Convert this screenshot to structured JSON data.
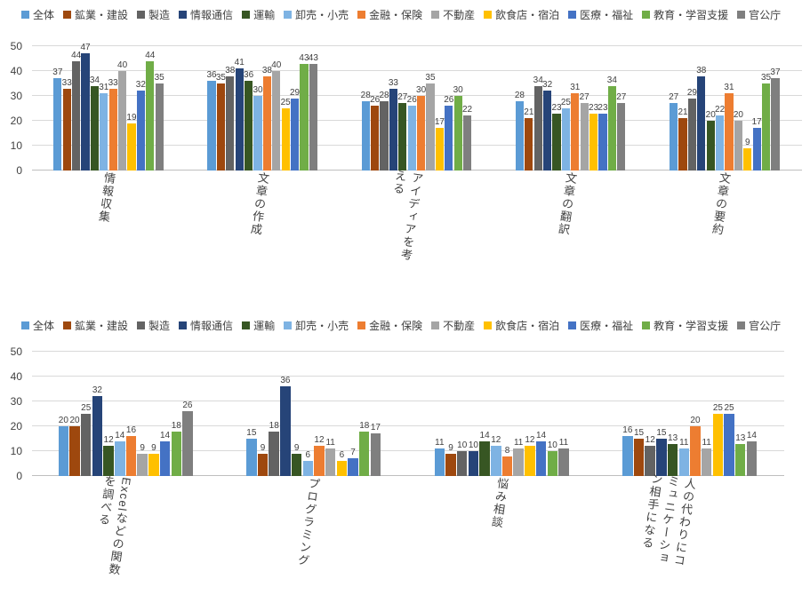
{
  "page": {
    "background": "#ffffff"
  },
  "chart_data": [
    {
      "type": "bar",
      "title": "",
      "xlabel": "",
      "ylabel": "",
      "legend_position": "top",
      "grid": true,
      "ylim": [
        0,
        50
      ],
      "yticks": [
        0,
        10,
        20,
        30,
        40,
        50
      ],
      "categories": [
        "情報収集",
        "文章の作成",
        "アイディアを考える",
        "文章の翻訳",
        "文章の要約"
      ],
      "series": [
        {
          "name": "全体",
          "color": "#5B9BD5",
          "values": [
            37,
            36,
            28,
            28,
            27
          ]
        },
        {
          "name": "鉱業・建設",
          "color": "#9E480E",
          "values": [
            33,
            35,
            26,
            21,
            21
          ]
        },
        {
          "name": "製造",
          "color": "#636363",
          "values": [
            44,
            38,
            28,
            34,
            29
          ]
        },
        {
          "name": "情報通信",
          "color": "#264478",
          "values": [
            47,
            41,
            33,
            32,
            38
          ]
        },
        {
          "name": "運輸",
          "color": "#375623",
          "values": [
            34,
            36,
            27,
            23,
            20
          ]
        },
        {
          "name": "卸売・小売",
          "color": "#7EB3E3",
          "values": [
            31,
            30,
            26,
            25,
            22
          ]
        },
        {
          "name": "金融・保険",
          "color": "#ED7D31",
          "values": [
            33,
            38,
            30,
            31,
            31
          ]
        },
        {
          "name": "不動産",
          "color": "#A5A5A5",
          "values": [
            40,
            40,
            35,
            27,
            20
          ]
        },
        {
          "name": "飲食店・宿泊",
          "color": "#FFC000",
          "values": [
            19,
            25,
            17,
            23,
            9
          ]
        },
        {
          "name": "医療・福祉",
          "color": "#4472C4",
          "values": [
            32,
            29,
            26,
            23,
            17
          ]
        },
        {
          "name": "教育・学習支援",
          "color": "#70AD47",
          "values": [
            44,
            43,
            30,
            34,
            35
          ]
        },
        {
          "name": "官公庁",
          "color": "#7F7F7F",
          "values": [
            35,
            43,
            22,
            27,
            37
          ]
        }
      ]
    },
    {
      "type": "bar",
      "title": "",
      "xlabel": "",
      "ylabel": "",
      "legend_position": "top",
      "grid": true,
      "ylim": [
        0,
        50
      ],
      "yticks": [
        0,
        10,
        20,
        30,
        40,
        50
      ],
      "categories": [
        "Excelなどの関数を調べる",
        "プログラミング",
        "悩み相談",
        "人の代わりにコミュニケーション相手になる"
      ],
      "series": [
        {
          "name": "全体",
          "color": "#5B9BD5",
          "values": [
            20,
            15,
            11,
            16
          ]
        },
        {
          "name": "鉱業・建設",
          "color": "#9E480E",
          "values": [
            20,
            9,
            9,
            15
          ]
        },
        {
          "name": "製造",
          "color": "#636363",
          "values": [
            25,
            18,
            10,
            12
          ]
        },
        {
          "name": "情報通信",
          "color": "#264478",
          "values": [
            32,
            36,
            10,
            15
          ]
        },
        {
          "name": "運輸",
          "color": "#375623",
          "values": [
            12,
            9,
            14,
            13
          ]
        },
        {
          "name": "卸売・小売",
          "color": "#7EB3E3",
          "values": [
            14,
            6,
            12,
            11
          ]
        },
        {
          "name": "金融・保険",
          "color": "#ED7D31",
          "values": [
            16,
            12,
            8,
            20
          ]
        },
        {
          "name": "不動産",
          "color": "#A5A5A5",
          "values": [
            9,
            11,
            11,
            11
          ]
        },
        {
          "name": "飲食店・宿泊",
          "color": "#FFC000",
          "values": [
            9,
            6,
            12,
            25
          ]
        },
        {
          "name": "医療・福祉",
          "color": "#4472C4",
          "values": [
            14,
            7,
            14,
            25
          ]
        },
        {
          "name": "教育・学習支援",
          "color": "#70AD47",
          "values": [
            18,
            18,
            10,
            13
          ]
        },
        {
          "name": "官公庁",
          "color": "#7F7F7F",
          "values": [
            26,
            17,
            11,
            14
          ]
        }
      ]
    }
  ]
}
